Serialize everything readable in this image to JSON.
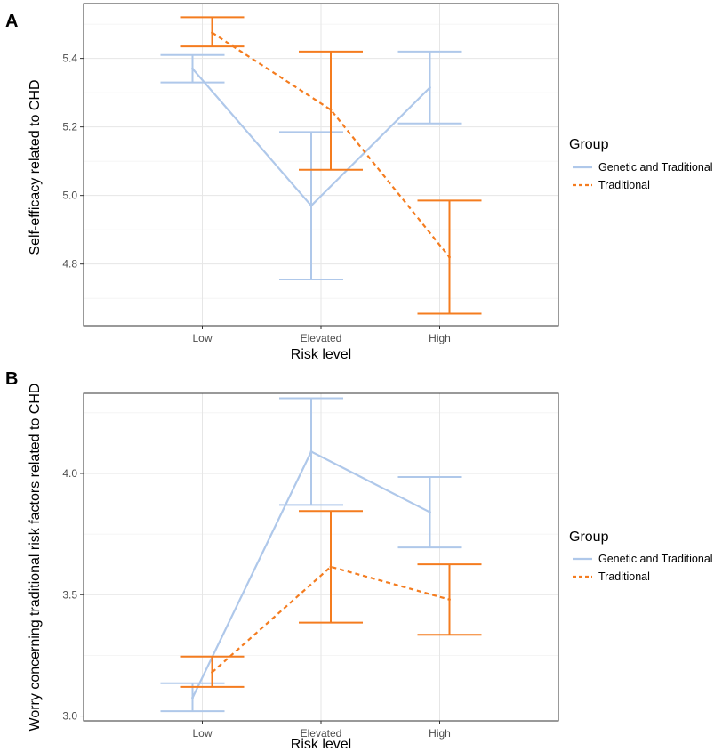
{
  "colors": {
    "genetic": "#afc8ea",
    "traditional": "#f47c1f",
    "grid_major": "#e6e6e6",
    "grid_minor": "#f2f2f2",
    "panel_border": "#333333"
  },
  "legend": {
    "title": "Group",
    "items": [
      "Genetic and Traditional",
      "Traditional"
    ]
  },
  "chart_data": [
    {
      "panel_label": "A",
      "type": "line",
      "xlabel": "Risk level",
      "ylabel": "Self-efficacy related to CHD",
      "categories": [
        "Low",
        "Elevated",
        "High"
      ],
      "ylim": [
        4.62,
        5.56
      ],
      "yticks": [
        4.8,
        5.0,
        5.2,
        5.4
      ],
      "ytick_labels": [
        "4.8",
        "5.0",
        "5.2",
        "5.4"
      ],
      "series": [
        {
          "name": "Genetic and Traditional",
          "linetype": "solid",
          "values": [
            5.37,
            4.97,
            5.315
          ],
          "lower": [
            5.33,
            4.755,
            5.21
          ],
          "upper": [
            5.41,
            5.185,
            5.42
          ]
        },
        {
          "name": "Traditional",
          "linetype": "dashed",
          "values": [
            5.475,
            5.25,
            4.82
          ],
          "lower": [
            5.435,
            5.075,
            4.655
          ],
          "upper": [
            5.52,
            5.42,
            4.985
          ]
        }
      ]
    },
    {
      "panel_label": "B",
      "type": "line",
      "xlabel": "Risk level",
      "ylabel": "Worry concerning traditional risk factors related to CHD",
      "categories": [
        "Low",
        "Elevated",
        "High"
      ],
      "ylim": [
        2.98,
        4.33
      ],
      "yticks": [
        3.0,
        3.5,
        4.0
      ],
      "ytick_labels": [
        "3.0",
        "3.5",
        "4.0"
      ],
      "series": [
        {
          "name": "Genetic and Traditional",
          "linetype": "solid",
          "values": [
            3.075,
            4.09,
            3.84
          ],
          "lower": [
            3.02,
            3.87,
            3.695
          ],
          "upper": [
            3.135,
            4.31,
            3.985
          ]
        },
        {
          "name": "Traditional",
          "linetype": "dashed",
          "values": [
            3.18,
            3.615,
            3.48
          ],
          "lower": [
            3.12,
            3.385,
            3.335
          ],
          "upper": [
            3.245,
            3.845,
            3.625
          ]
        }
      ]
    }
  ]
}
